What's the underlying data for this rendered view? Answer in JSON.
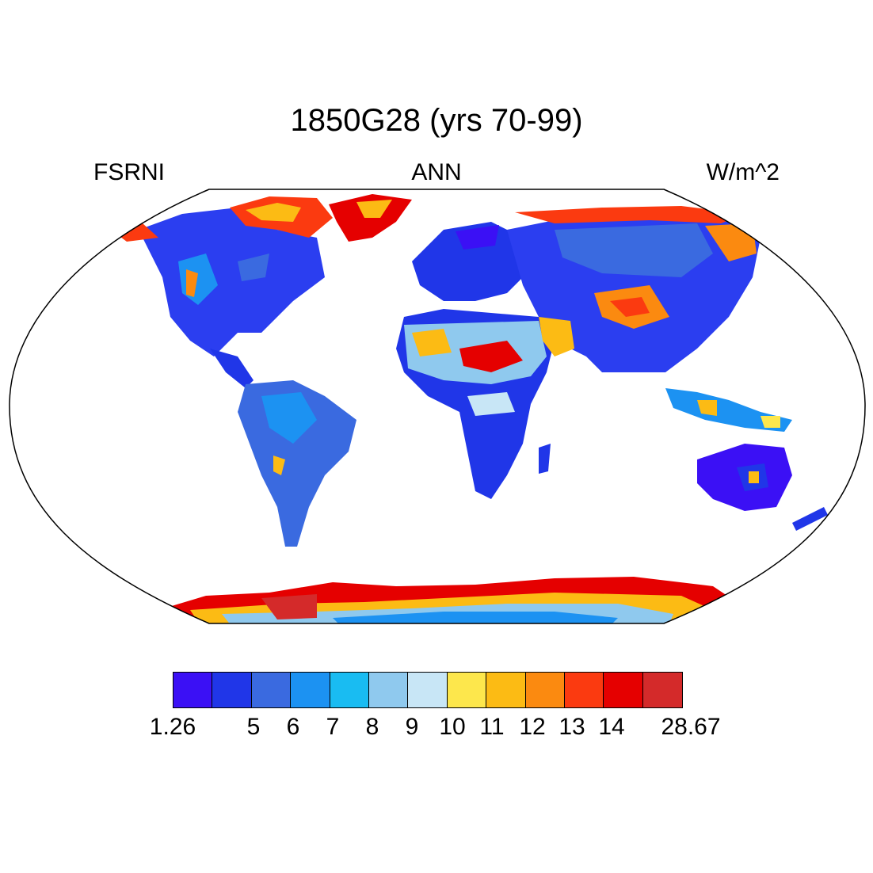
{
  "header": {
    "title": "1850G28 (yrs 70-99)",
    "left_label": "FSRNI",
    "center_label": "ANN",
    "right_label": "W/m^2"
  },
  "colorbar": {
    "colors": [
      "#3b10f5",
      "#2036e8",
      "#3a6ae0",
      "#1c92f2",
      "#19bcf2",
      "#8fc9ee",
      "#c8e6f6",
      "#fde74c",
      "#fcbb14",
      "#fb8a10",
      "#fb3a10",
      "#e50000",
      "#d42a2a"
    ],
    "tick_labels": [
      "1.26",
      "5",
      "6",
      "7",
      "8",
      "9",
      "10",
      "11",
      "12",
      "13",
      "14",
      "28.67"
    ]
  },
  "map": {
    "projection": "Robinson",
    "field": "FSRNI",
    "units": "W/m^2"
  }
}
